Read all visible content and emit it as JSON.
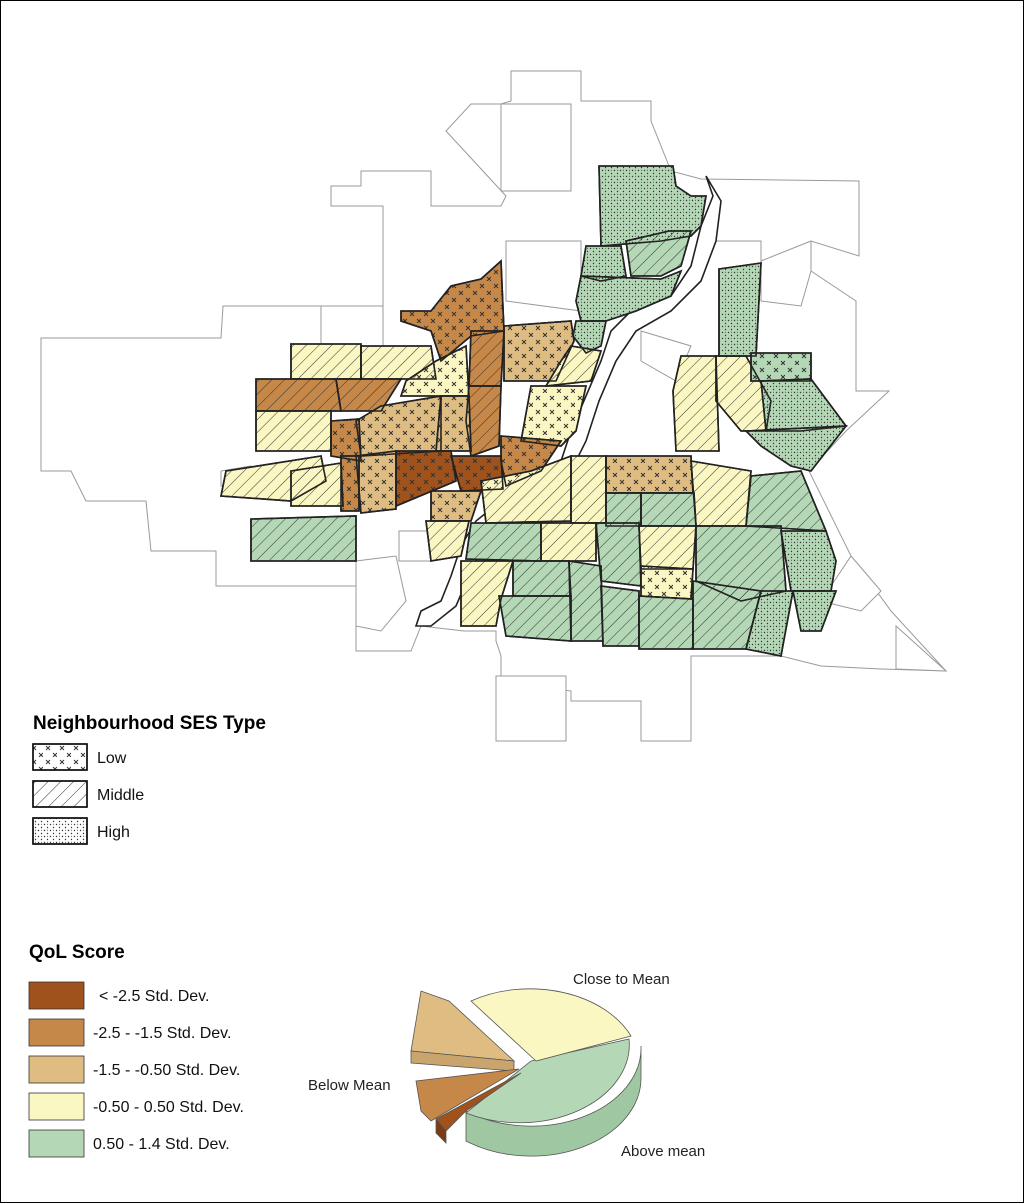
{
  "colors": {
    "q1": "#a0521d",
    "q2": "#c68849",
    "q3": "#dfbd82",
    "q4": "#fbf7c2",
    "q5": "#b4d8b6",
    "river": "#ffffff",
    "outline": "#222222"
  },
  "ses_legend": {
    "title": "Neighbourhood SES Type",
    "items": [
      {
        "label": "Low",
        "pattern": "cross-x"
      },
      {
        "label": "Middle",
        "pattern": "diagonal-hatch"
      },
      {
        "label": "High",
        "pattern": "stipple-dots"
      }
    ]
  },
  "qol_legend": {
    "title": "QoL Score",
    "items": [
      {
        "label": "< -2.5 Std. Dev.",
        "color": "#a0521d"
      },
      {
        "label": "-2.5  -  -1.5 Std. Dev.",
        "color": "#c68849"
      },
      {
        "label": "-1.5  -  -0.50 Std. Dev.",
        "color": "#dfbd82"
      },
      {
        "label": "-0.50  -  0.50 Std. Dev.",
        "color": "#fbf7c2"
      },
      {
        "label": "0.50  -  1.4 Std. Dev.",
        "color": "#b4d8b6"
      }
    ]
  },
  "pie": {
    "labels": {
      "close": "Close to  Mean",
      "below": "Below Mean",
      "above": "Above mean"
    }
  }
}
